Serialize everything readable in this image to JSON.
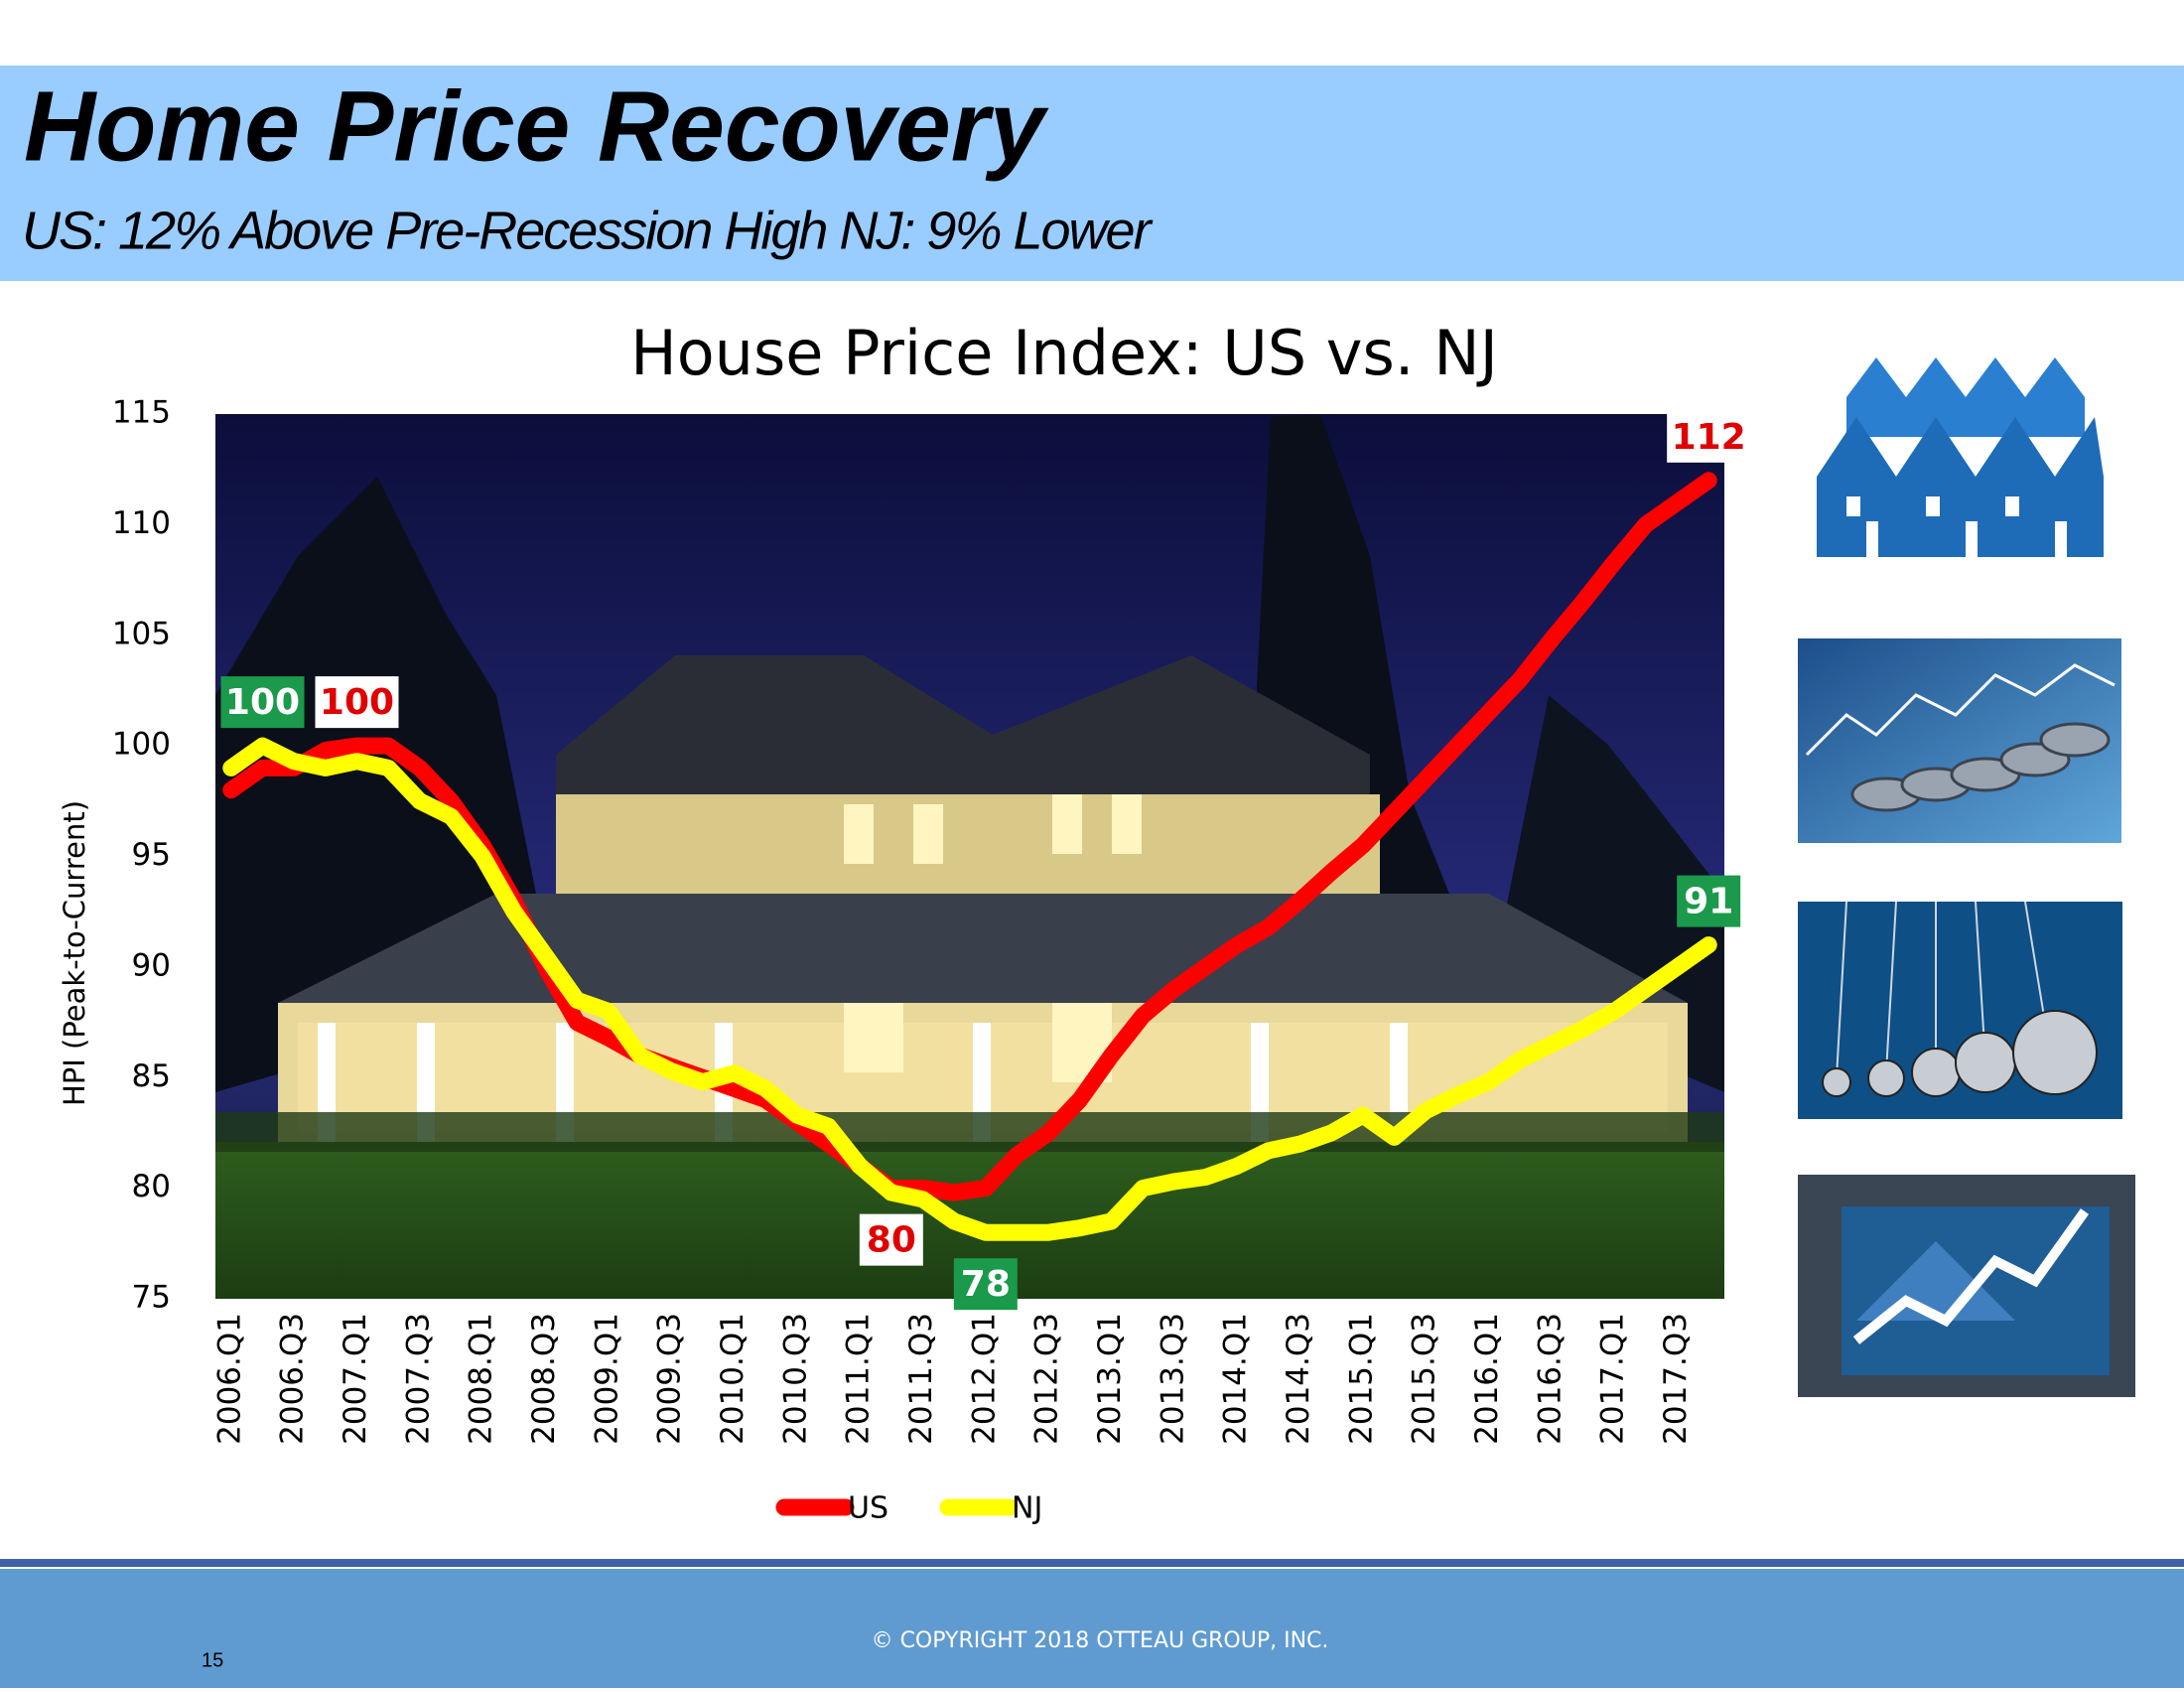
{
  "header": {
    "title": "Home Price Recovery",
    "subtitle": "US: 12% Above Pre-Recession High NJ: 9%  Lower"
  },
  "chart_data": {
    "type": "line",
    "title": "House Price Index:  US vs. NJ",
    "y_label": "HPI (Peak-to-Current)",
    "categories": [
      "2006.Q1",
      null,
      "2006.Q3",
      null,
      "2007.Q1",
      null,
      "2007.Q3",
      null,
      "2008.Q1",
      null,
      "2008.Q3",
      null,
      "2009.Q1",
      null,
      "2009.Q3",
      null,
      "2010.Q1",
      null,
      "2010.Q3",
      null,
      "2011.Q1",
      null,
      "2011.Q3",
      null,
      "2012.Q1",
      null,
      "2012.Q3",
      null,
      "2013.Q1",
      null,
      "2013.Q3",
      null,
      "2014.Q1",
      null,
      "2014.Q3",
      null,
      "2015.Q1",
      null,
      "2015.Q3",
      null,
      "2016.Q1",
      null,
      "2016.Q3",
      null,
      "2017.Q1",
      null,
      "2017.Q3",
      null
    ],
    "series": [
      {
        "name": "US",
        "color": "#ff0000",
        "label_fill": "#ffffff",
        "label_text_color": "#e00000",
        "values": [
          98,
          99,
          99,
          99.8,
          100,
          100,
          99,
          97.5,
          95.5,
          93,
          90,
          87.5,
          86.8,
          86,
          85.5,
          85,
          84.5,
          84,
          83,
          82,
          81,
          80,
          80,
          79.8,
          80,
          81.5,
          82.5,
          84,
          86,
          87.8,
          89,
          90,
          91,
          91.8,
          93,
          94.3,
          95.5,
          97,
          98.5,
          100,
          101.5,
          103,
          104.8,
          106.5,
          108.3,
          110,
          111,
          112
        ],
        "labeled_points": [
          {
            "index": 4,
            "position": "above"
          },
          {
            "index": 21,
            "position": "below"
          },
          {
            "index": 47,
            "position": "above"
          }
        ]
      },
      {
        "name": "NJ",
        "color": "#ffff00",
        "label_fill": "#1a9a4a",
        "label_text_color": "#ffffff",
        "values": [
          99,
          100,
          99.3,
          99,
          99.3,
          99,
          97.5,
          96.8,
          95,
          92.5,
          90.5,
          88.5,
          88,
          86,
          85.3,
          84.8,
          85.2,
          84.5,
          83.3,
          82.8,
          81,
          79.8,
          79.5,
          78.5,
          78,
          78,
          78,
          78.2,
          78.5,
          80,
          80.3,
          80.5,
          81,
          81.7,
          82,
          82.5,
          83.3,
          82.3,
          83.5,
          84.2,
          84.8,
          85.8,
          86.5,
          87.2,
          88,
          89,
          90,
          91
        ],
        "labeled_points": [
          {
            "index": 1,
            "position": "above"
          },
          {
            "index": 24,
            "position": "below"
          },
          {
            "index": 47,
            "position": "above"
          }
        ]
      }
    ],
    "ylim": [
      75,
      115
    ],
    "yticks": [
      75,
      80,
      85,
      90,
      95,
      100,
      105,
      110,
      115
    ],
    "grid": false,
    "legend": "bottom"
  },
  "footer": {
    "copyright": "© COPYRIGHT 2018 OTTEAU GROUP, INC.",
    "page_number": "15"
  }
}
